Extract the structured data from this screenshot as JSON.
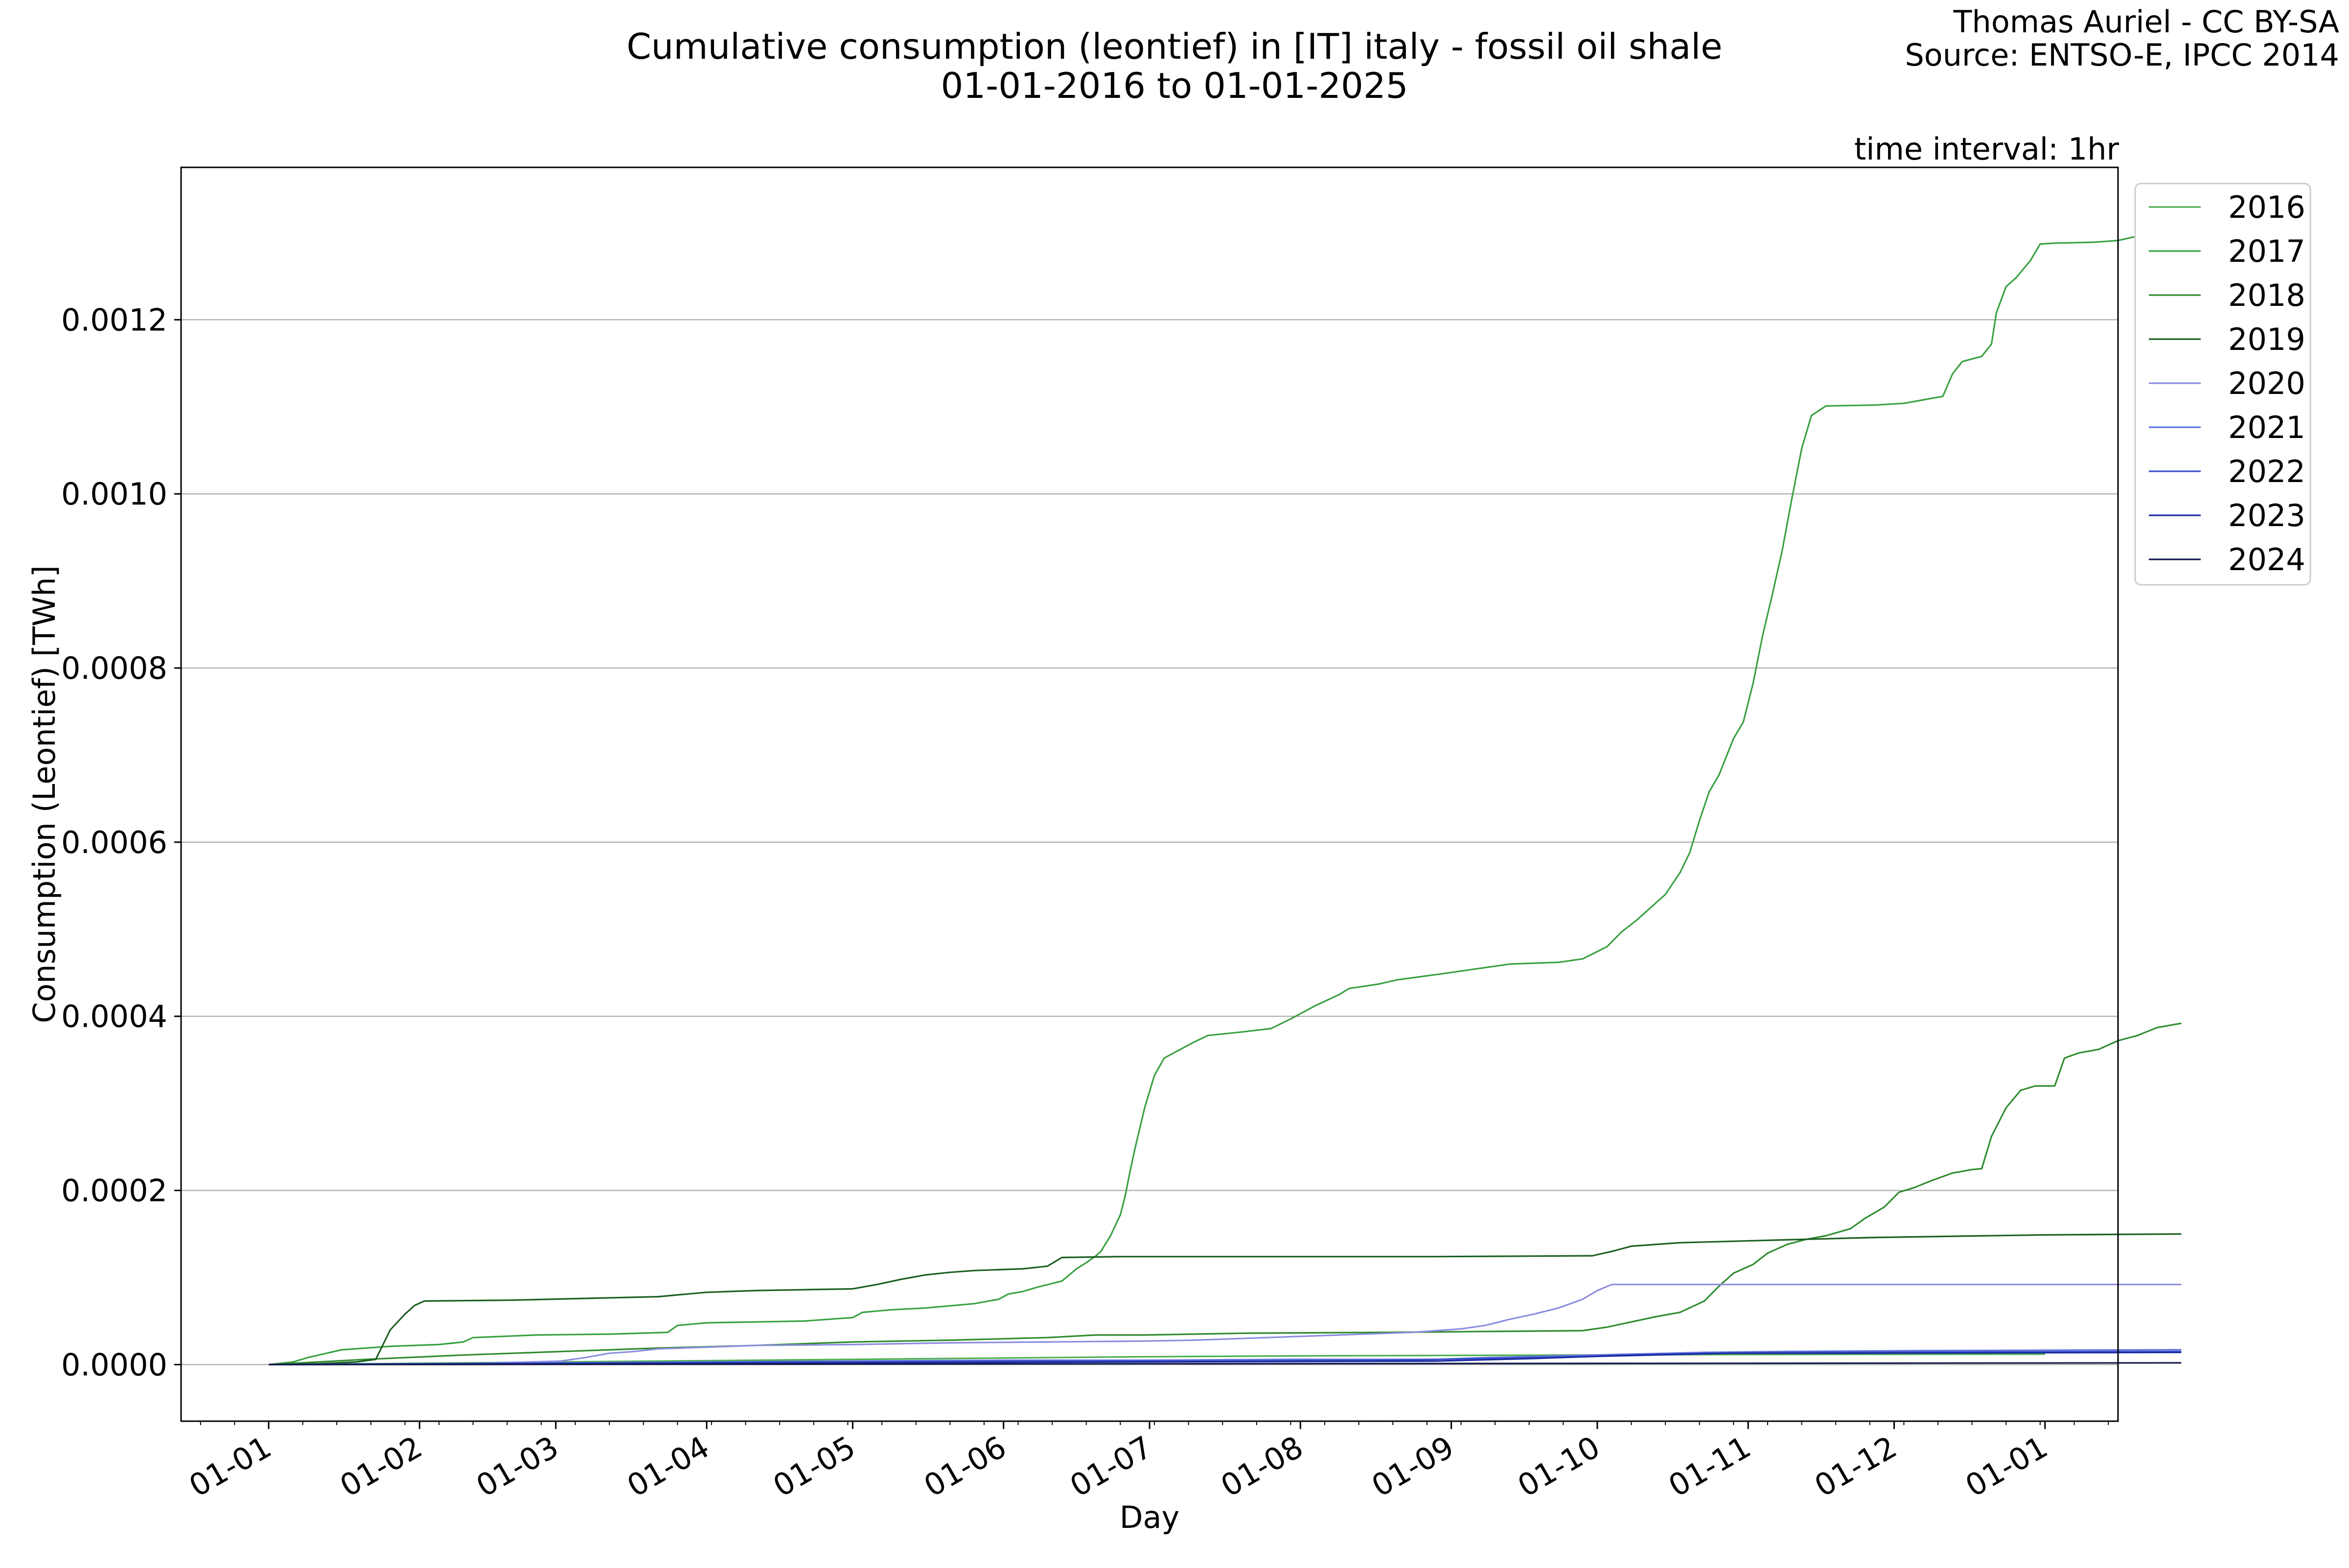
{
  "chart_data": {
    "type": "line",
    "title": "Cumulative consumption (leontief) in [IT] italy - fossil oil shale",
    "subtitle": "01-01-2016 to 01-01-2025",
    "credit": "Thomas Auriel - CC BY-SA",
    "source": "Source: ENTSO-E, IPCC 2014",
    "annotation": "time interval: 1hr",
    "xlabel": "Day",
    "ylabel": "Consumption (Leontief) [TWh]",
    "xlim": [
      -18,
      380
    ],
    "ylim": [
      -6.5e-05,
      0.001375
    ],
    "grid": "horizontal",
    "legend_position": "outside right, top",
    "x_ticks": [
      {
        "label": "01-01",
        "day": 0
      },
      {
        "label": "01-02",
        "day": 31
      },
      {
        "label": "01-03",
        "day": 59
      },
      {
        "label": "01-04",
        "day": 90
      },
      {
        "label": "01-05",
        "day": 120
      },
      {
        "label": "01-06",
        "day": 151
      },
      {
        "label": "01-07",
        "day": 181
      },
      {
        "label": "01-08",
        "day": 212
      },
      {
        "label": "01-09",
        "day": 243
      },
      {
        "label": "01-10",
        "day": 273
      },
      {
        "label": "01-11",
        "day": 304
      },
      {
        "label": "01-12",
        "day": 334
      },
      {
        "label": "01-01",
        "day": 365
      }
    ],
    "y_ticks": [
      {
        "label": "0.0000",
        "value": 0.0
      },
      {
        "label": "0.0002",
        "value": 0.0002
      },
      {
        "label": "0.0004",
        "value": 0.0004
      },
      {
        "label": "0.0006",
        "value": 0.0006
      },
      {
        "label": "0.0008",
        "value": 0.0008
      },
      {
        "label": "0.0010",
        "value": 0.001
      },
      {
        "label": "0.0012",
        "value": 0.0012
      }
    ],
    "series": [
      {
        "name": "2016",
        "color": "#4caf50",
        "points": [
          [
            0,
            0
          ],
          [
            30,
            1.5e-06
          ],
          [
            60,
            3e-06
          ],
          [
            90,
            4.5e-06
          ],
          [
            120,
            6e-06
          ],
          [
            150,
            7.5e-06
          ],
          [
            180,
            9e-06
          ],
          [
            210,
            1e-05
          ],
          [
            240,
            1.05e-05
          ],
          [
            270,
            1.1e-05
          ],
          [
            300,
            1.15e-05
          ],
          [
            330,
            1.18e-05
          ],
          [
            365,
            1.2e-05
          ]
        ]
      },
      {
        "name": "2017",
        "color": "#38a040",
        "points": [
          [
            0,
            0
          ],
          [
            5,
            3e-06
          ],
          [
            8,
            8e-06
          ],
          [
            15,
            1.7e-05
          ],
          [
            25,
            2.1e-05
          ],
          [
            35,
            2.3e-05
          ],
          [
            40,
            2.6e-05
          ],
          [
            42,
            3.1e-05
          ],
          [
            55,
            3.4e-05
          ],
          [
            70,
            3.5e-05
          ],
          [
            82,
            3.7e-05
          ],
          [
            84,
            4.5e-05
          ],
          [
            90,
            4.8e-05
          ],
          [
            110,
            5e-05
          ],
          [
            115,
            5.2e-05
          ],
          [
            120,
            5.4e-05
          ],
          [
            122,
            6e-05
          ],
          [
            128,
            6.3e-05
          ],
          [
            135,
            6.5e-05
          ],
          [
            145,
            7e-05
          ],
          [
            150,
            7.5e-05
          ],
          [
            152,
            8.1e-05
          ],
          [
            155,
            8.4e-05
          ],
          [
            158,
            8.9e-05
          ],
          [
            163,
            9.6e-05
          ],
          [
            166,
            0.00011
          ],
          [
            168,
            0.000117
          ],
          [
            170,
            0.000125
          ],
          [
            171,
            0.00013
          ],
          [
            173,
            0.000148
          ],
          [
            175,
            0.000172
          ],
          [
            176,
            0.000194
          ],
          [
            177,
            0.000222
          ],
          [
            178,
            0.000248
          ],
          [
            180,
            0.000295
          ],
          [
            182,
            0.000332
          ],
          [
            184,
            0.000352
          ],
          [
            186,
            0.000358
          ],
          [
            190,
            0.00037
          ],
          [
            193,
            0.000378
          ],
          [
            200,
            0.000382
          ],
          [
            206,
            0.000386
          ],
          [
            210,
            0.000397
          ],
          [
            215,
            0.000412
          ],
          [
            220,
            0.000425
          ],
          [
            222,
            0.000432
          ],
          [
            228,
            0.000437
          ],
          [
            232,
            0.000442
          ],
          [
            240,
            0.000448
          ],
          [
            250,
            0.000456
          ],
          [
            255,
            0.00046
          ],
          [
            265,
            0.000462
          ],
          [
            270,
            0.000466
          ],
          [
            275,
            0.00048
          ],
          [
            278,
            0.000497
          ],
          [
            281,
            0.00051
          ],
          [
            284,
            0.000525
          ],
          [
            287,
            0.00054
          ],
          [
            290,
            0.000565
          ],
          [
            292,
            0.000588
          ],
          [
            294,
            0.000625
          ],
          [
            296,
            0.000658
          ],
          [
            298,
            0.000677
          ],
          [
            300,
            0.000705
          ],
          [
            301,
            0.000719
          ],
          [
            303,
            0.000738
          ],
          [
            305,
            0.000782
          ],
          [
            307,
            0.000838
          ],
          [
            309,
            0.000885
          ],
          [
            311,
            0.000935
          ],
          [
            313,
            0.000995
          ],
          [
            315,
            0.001052
          ],
          [
            317,
            0.00109
          ],
          [
            320,
            0.001101
          ],
          [
            330,
            0.001102
          ],
          [
            336,
            0.001104
          ],
          [
            340,
            0.001108
          ],
          [
            344,
            0.001112
          ],
          [
            346,
            0.001138
          ],
          [
            348,
            0.001152
          ],
          [
            352,
            0.001158
          ],
          [
            354,
            0.001172
          ],
          [
            355,
            0.001208
          ],
          [
            357,
            0.001238
          ],
          [
            359,
            0.001248
          ],
          [
            362,
            0.001268
          ],
          [
            364,
            0.001287
          ],
          [
            367,
            0.001288
          ],
          [
            375,
            0.001289
          ],
          [
            380,
            0.001291
          ],
          [
            384,
            0.001296
          ],
          [
            386,
            0.001302
          ],
          [
            393,
            0.001304
          ]
        ]
      },
      {
        "name": "2018",
        "color": "#2e8b2e",
        "points": [
          [
            0,
            0
          ],
          [
            20,
            6e-06
          ],
          [
            40,
            1.1e-05
          ],
          [
            60,
            1.5e-05
          ],
          [
            80,
            1.9e-05
          ],
          [
            100,
            2.2e-05
          ],
          [
            120,
            2.6e-05
          ],
          [
            140,
            2.8e-05
          ],
          [
            160,
            3.1e-05
          ],
          [
            170,
            3.4e-05
          ],
          [
            180,
            3.4e-05
          ],
          [
            190,
            3.5e-05
          ],
          [
            200,
            3.6e-05
          ],
          [
            230,
            3.7e-05
          ],
          [
            250,
            3.8e-05
          ],
          [
            270,
            3.9e-05
          ],
          [
            275,
            4.3e-05
          ],
          [
            280,
            4.9e-05
          ],
          [
            285,
            5.5e-05
          ],
          [
            290,
            6e-05
          ],
          [
            295,
            7.3e-05
          ],
          [
            298,
            9e-05
          ],
          [
            301,
            0.000105
          ],
          [
            305,
            0.000115
          ],
          [
            308,
            0.000128
          ],
          [
            312,
            0.000138
          ],
          [
            316,
            0.000144
          ],
          [
            320,
            0.000148
          ],
          [
            325,
            0.000156
          ],
          [
            328,
            0.000168
          ],
          [
            332,
            0.000181
          ],
          [
            335,
            0.000198
          ],
          [
            338,
            0.000203
          ],
          [
            342,
            0.000212
          ],
          [
            346,
            0.00022
          ],
          [
            350,
            0.000224
          ],
          [
            352,
            0.000225
          ],
          [
            354,
            0.000262
          ],
          [
            357,
            0.000295
          ],
          [
            360,
            0.000315
          ],
          [
            363,
            0.00032
          ],
          [
            367,
            0.00032
          ],
          [
            369,
            0.000352
          ],
          [
            372,
            0.000358
          ],
          [
            376,
            0.000362
          ],
          [
            380,
            0.000372
          ],
          [
            384,
            0.000378
          ],
          [
            388,
            0.000387
          ],
          [
            393,
            0.000392
          ]
        ]
      },
      {
        "name": "2019",
        "color": "#1b5e20",
        "points": [
          [
            0,
            0
          ],
          [
            10,
            1e-06
          ],
          [
            18,
            3e-06
          ],
          [
            22,
            6e-06
          ],
          [
            25,
            4e-05
          ],
          [
            28,
            5.8e-05
          ],
          [
            30,
            6.8e-05
          ],
          [
            32,
            7.3e-05
          ],
          [
            50,
            7.4e-05
          ],
          [
            65,
            7.6e-05
          ],
          [
            80,
            7.8e-05
          ],
          [
            86,
            8.1e-05
          ],
          [
            90,
            8.3e-05
          ],
          [
            100,
            8.5e-05
          ],
          [
            110,
            8.6e-05
          ],
          [
            120,
            8.7e-05
          ],
          [
            125,
            9.2e-05
          ],
          [
            130,
            9.8e-05
          ],
          [
            135,
            0.000103
          ],
          [
            140,
            0.000106
          ],
          [
            145,
            0.000108
          ],
          [
            155,
            0.00011
          ],
          [
            160,
            0.000113
          ],
          [
            163,
            0.000123
          ],
          [
            175,
            0.000124
          ],
          [
            200,
            0.000124
          ],
          [
            240,
            0.000124
          ],
          [
            272,
            0.000125
          ],
          [
            276,
            0.00013
          ],
          [
            280,
            0.000136
          ],
          [
            290,
            0.00014
          ],
          [
            310,
            0.000143
          ],
          [
            330,
            0.000146
          ],
          [
            365,
            0.000149
          ],
          [
            393,
            0.00015
          ]
        ]
      },
      {
        "name": "2020",
        "color": "#8c8ce0",
        "points": [
          [
            0,
            0
          ],
          [
            40,
            1e-06
          ],
          [
            60,
            4e-06
          ],
          [
            65,
            8e-06
          ],
          [
            70,
            1.3e-05
          ],
          [
            75,
            1.5e-05
          ],
          [
            80,
            1.8e-05
          ],
          [
            90,
            2e-05
          ],
          [
            100,
            2.2e-05
          ],
          [
            120,
            2.3e-05
          ],
          [
            140,
            2.5e-05
          ],
          [
            160,
            2.6e-05
          ],
          [
            180,
            2.7e-05
          ],
          [
            190,
            2.8e-05
          ],
          [
            200,
            3e-05
          ],
          [
            210,
            3.2e-05
          ],
          [
            220,
            3.4e-05
          ],
          [
            235,
            3.7e-05
          ],
          [
            245,
            4.1e-05
          ],
          [
            250,
            4.5e-05
          ],
          [
            255,
            5.2e-05
          ],
          [
            260,
            5.8e-05
          ],
          [
            265,
            6.5e-05
          ],
          [
            270,
            7.5e-05
          ],
          [
            273,
            8.5e-05
          ],
          [
            276,
            9.2e-05
          ],
          [
            300,
            9.2e-05
          ],
          [
            393,
            9.2e-05
          ]
        ]
      },
      {
        "name": "2021",
        "color": "#6070e0",
        "points": [
          [
            0,
            0
          ],
          [
            30,
            1e-06
          ],
          [
            60,
            2e-06
          ],
          [
            90,
            3e-06
          ],
          [
            120,
            4e-06
          ],
          [
            150,
            5e-06
          ],
          [
            180,
            5e-06
          ],
          [
            210,
            6e-06
          ],
          [
            240,
            6e-06
          ],
          [
            250,
            8e-06
          ],
          [
            265,
            1e-05
          ],
          [
            280,
            1.2e-05
          ],
          [
            295,
            1.4e-05
          ],
          [
            310,
            1.5e-05
          ],
          [
            340,
            1.6e-05
          ],
          [
            393,
            1.7e-05
          ]
        ]
      },
      {
        "name": "2022",
        "color": "#3b4fc8",
        "points": [
          [
            0,
            0
          ],
          [
            40,
            1e-06
          ],
          [
            80,
            2e-06
          ],
          [
            120,
            3e-06
          ],
          [
            160,
            4e-06
          ],
          [
            200,
            4e-06
          ],
          [
            230,
            5e-06
          ],
          [
            250,
            7e-06
          ],
          [
            270,
            9e-06
          ],
          [
            285,
            1.1e-05
          ],
          [
            300,
            1.3e-05
          ],
          [
            320,
            1.4e-05
          ],
          [
            393,
            1.5e-05
          ]
        ]
      },
      {
        "name": "2023",
        "color": "#1a2aa0",
        "points": [
          [
            0,
            0
          ],
          [
            60,
            1e-06
          ],
          [
            120,
            2e-06
          ],
          [
            180,
            3e-06
          ],
          [
            240,
            4e-06
          ],
          [
            260,
            7e-06
          ],
          [
            275,
            1e-05
          ],
          [
            290,
            1.2e-05
          ],
          [
            300,
            1.3e-05
          ],
          [
            320,
            1.3e-05
          ],
          [
            393,
            1.4e-05
          ]
        ]
      },
      {
        "name": "2024",
        "color": "#101848",
        "points": [
          [
            0,
            0
          ],
          [
            100,
            5e-07
          ],
          [
            200,
            1e-06
          ],
          [
            300,
            1.5e-06
          ],
          [
            393,
            2e-06
          ]
        ]
      }
    ]
  }
}
